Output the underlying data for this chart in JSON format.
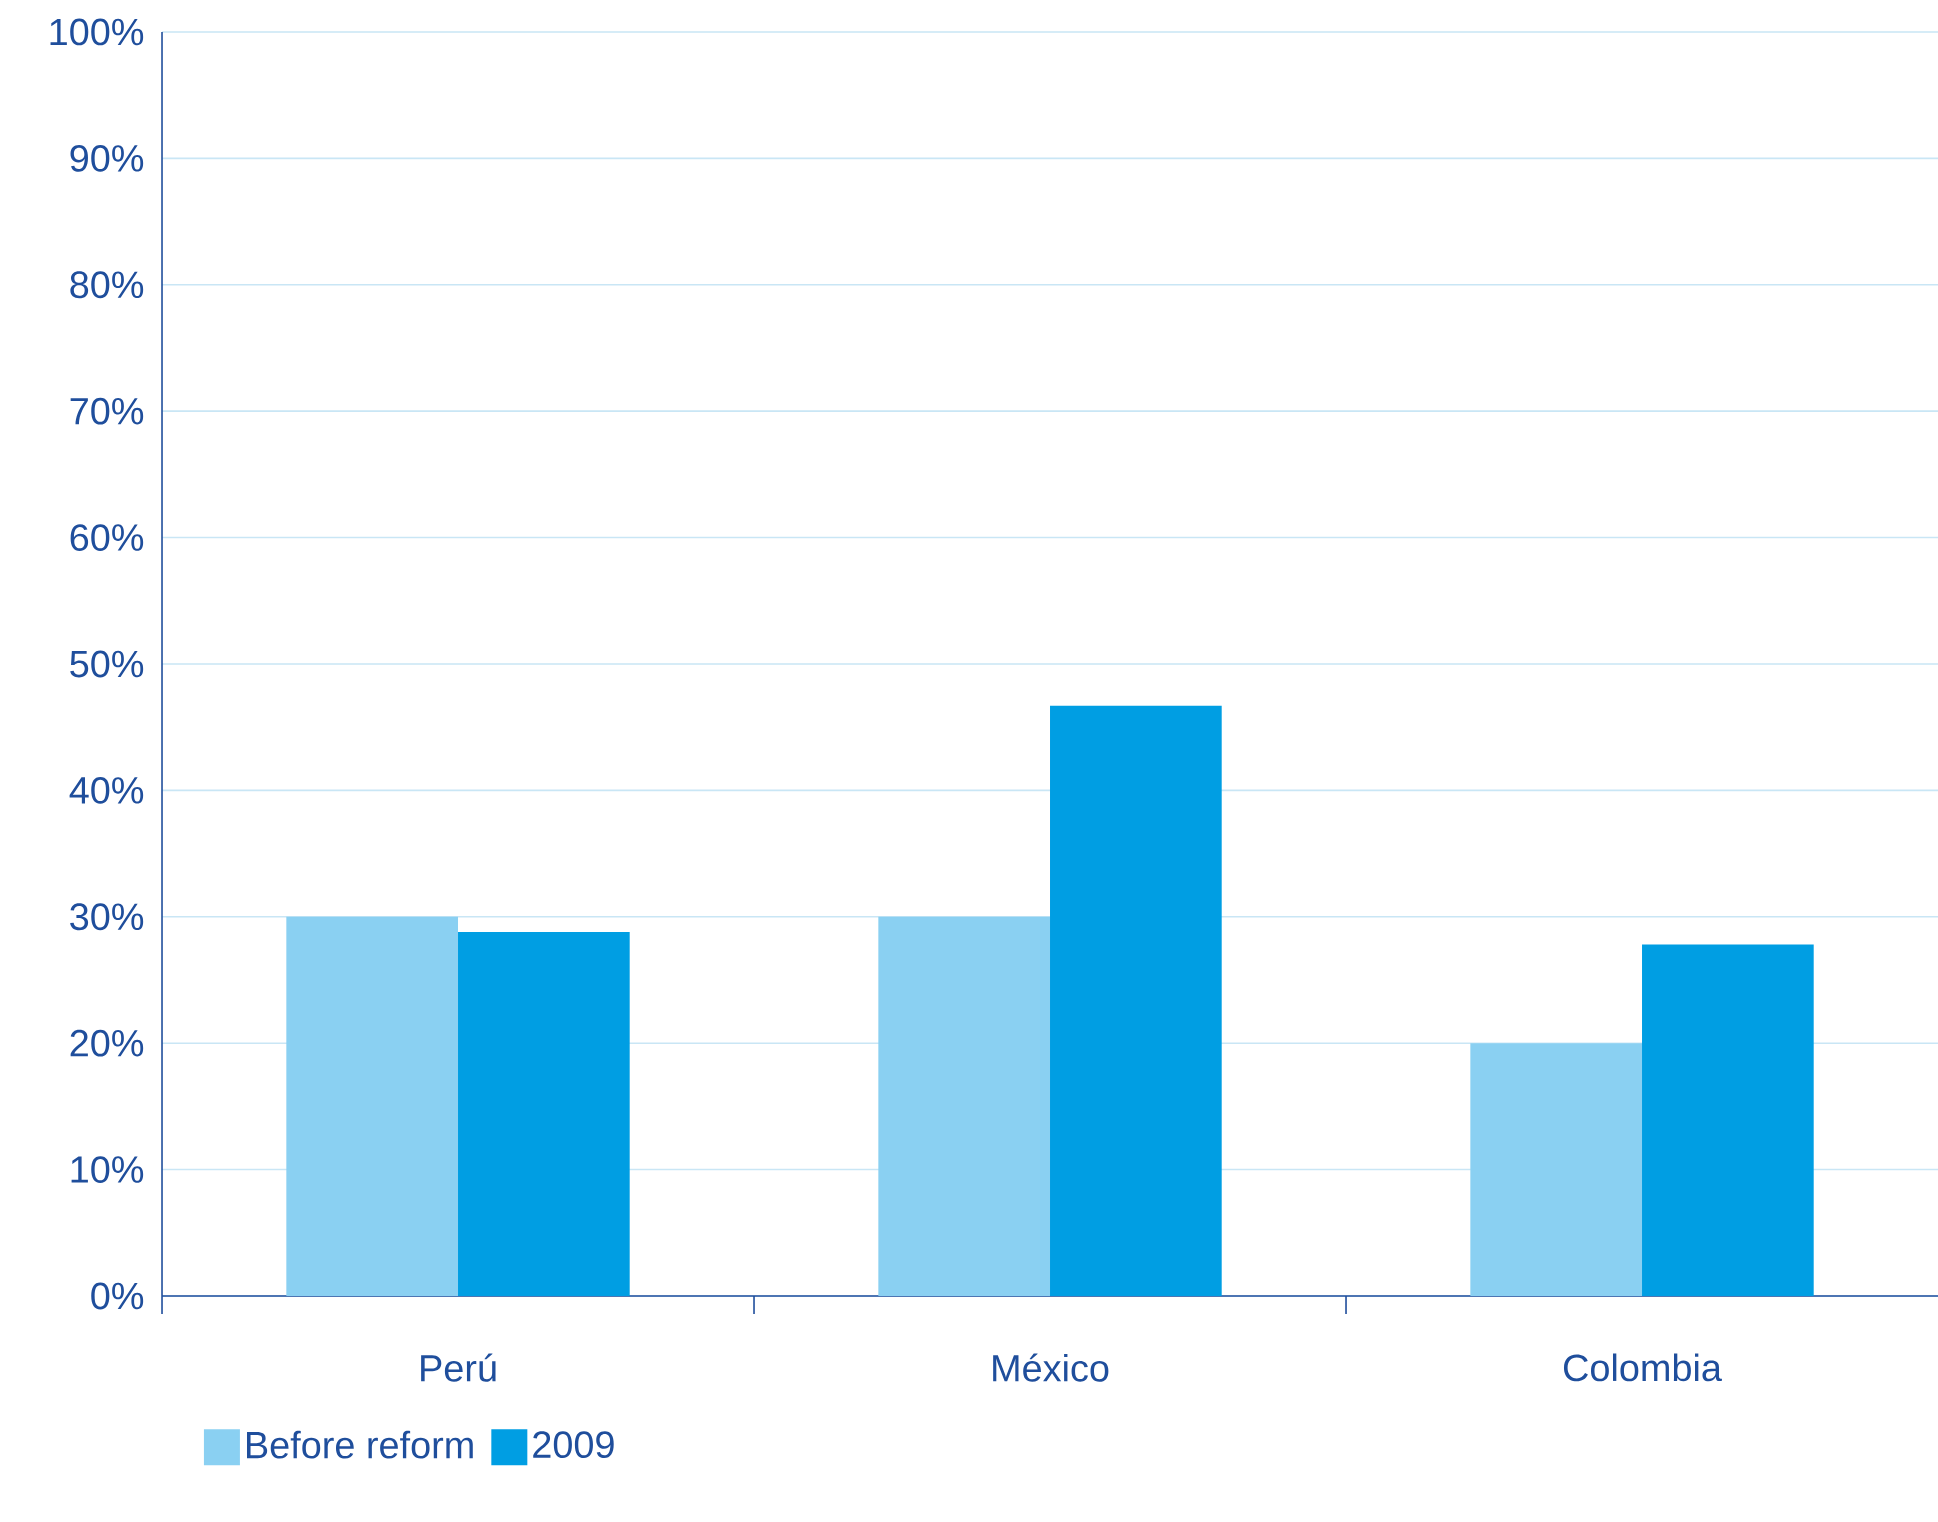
{
  "chart_data": {
    "type": "bar",
    "categories": [
      "Perú",
      "México",
      "Colombia"
    ],
    "series": [
      {
        "name": "Before reform",
        "color": "#8ad0f2",
        "values": [
          30,
          30,
          20
        ]
      },
      {
        "name": "2009",
        "color": "#009ee3",
        "values": [
          28.8,
          46.7,
          27.8
        ]
      }
    ],
    "ylim": [
      0,
      100
    ],
    "yticks": [
      {
        "value": 0,
        "label": "0%"
      },
      {
        "value": 10,
        "label": "10%"
      },
      {
        "value": 20,
        "label": "20%"
      },
      {
        "value": 30,
        "label": "30%"
      },
      {
        "value": 40,
        "label": "40%"
      },
      {
        "value": 50,
        "label": "50%"
      },
      {
        "value": 60,
        "label": "60%"
      },
      {
        "value": 70,
        "label": "70%"
      },
      {
        "value": 80,
        "label": "80%"
      },
      {
        "value": 90,
        "label": "90%"
      },
      {
        "value": 100,
        "label": "100%"
      }
    ],
    "grid": "y",
    "legend": "bottom left"
  }
}
